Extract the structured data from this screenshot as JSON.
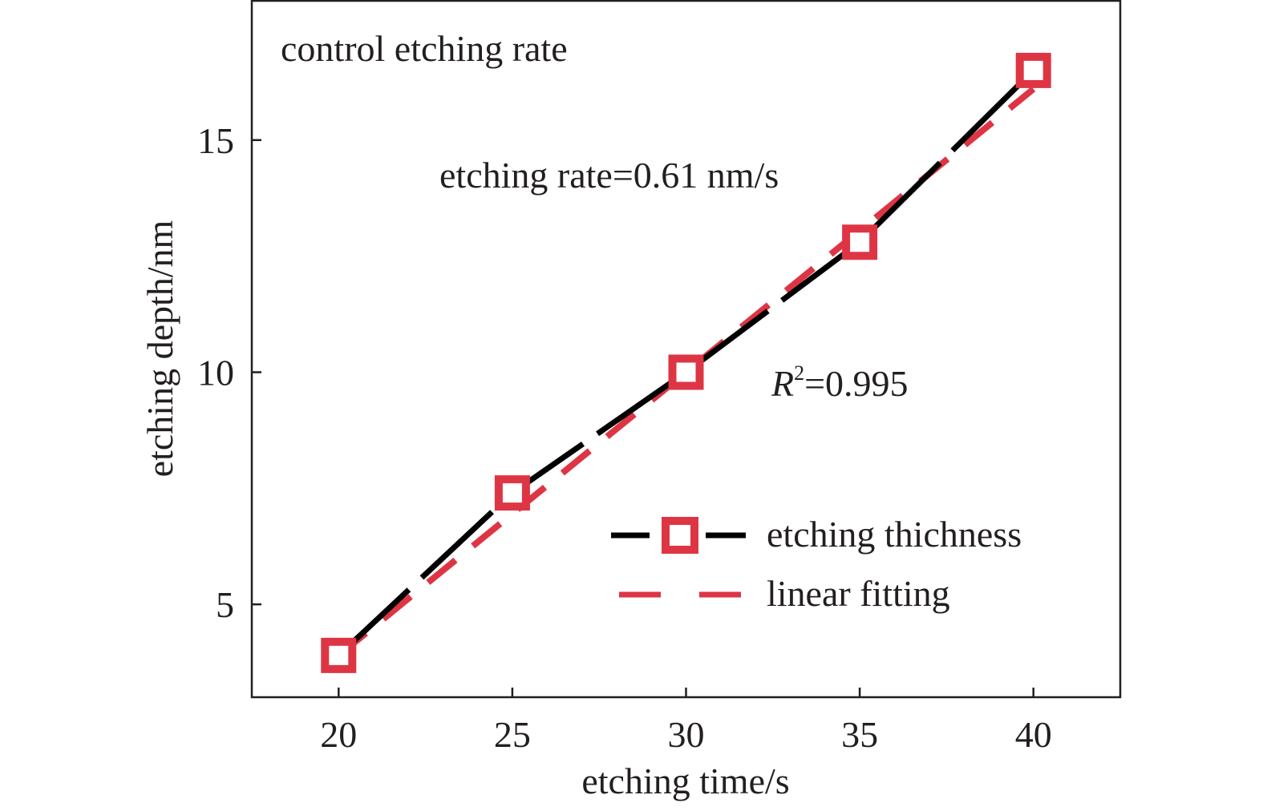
{
  "chart_data": {
    "type": "line",
    "title": "control etching rate",
    "xlabel": "etching time/s",
    "ylabel": "etching depth/nm",
    "xlim": [
      17.5,
      42.5
    ],
    "ylim": [
      3.0,
      18.0
    ],
    "x_ticks": [
      20,
      25,
      30,
      35,
      40
    ],
    "y_ticks": [
      5,
      10,
      15
    ],
    "x_tick_labels": [
      "20",
      "25",
      "30",
      "35",
      "40"
    ],
    "y_tick_labels": [
      "5",
      "10",
      "15"
    ],
    "grid": false,
    "legend_position": "bottom-right",
    "series": [
      {
        "name": "etching thichness",
        "style": "black dashed line with red square markers",
        "line_color": "#000000",
        "marker_color": "#de3545",
        "x": [
          20,
          25,
          30,
          35,
          40
        ],
        "y": [
          3.9,
          7.4,
          10.0,
          12.8,
          16.5
        ]
      },
      {
        "name": "linear fitting",
        "style": "red dashed line",
        "line_color": "#de3545",
        "x": [
          20,
          40
        ],
        "y": [
          3.9,
          16.1
        ]
      }
    ],
    "annotations": {
      "rate_label": "etching rate=0.61 nm/s",
      "r2_symbol": "R",
      "r2_sup": "2",
      "r2_value": "=0.995"
    }
  }
}
